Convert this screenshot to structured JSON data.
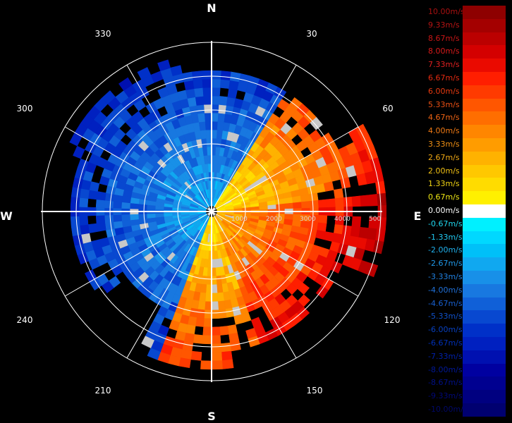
{
  "compass": {
    "north": "N",
    "east": "E",
    "south": "S",
    "west": "W"
  },
  "angle_labels": [
    "30",
    "60",
    "120",
    "150",
    "210",
    "240",
    "300",
    "330"
  ],
  "range_labels": [
    "1000",
    "2000",
    "3000",
    "4000",
    "500"
  ],
  "legend": [
    {
      "label": "10.00m/s",
      "color": "#8e0000",
      "text_color": "#a81010"
    },
    {
      "label": "9.33m/s",
      "color": "#a40000",
      "text_color": "#b81414"
    },
    {
      "label": "8.67m/s",
      "color": "#bb0000",
      "text_color": "#c81616"
    },
    {
      "label": "8.00m/s",
      "color": "#d40000",
      "text_color": "#d81a1a"
    },
    {
      "label": "7.33m/s",
      "color": "#ea0a00",
      "text_color": "#e02020"
    },
    {
      "label": "6.67m/s",
      "color": "#ff1e00",
      "text_color": "#e42a10"
    },
    {
      "label": "6.00m/s",
      "color": "#ff3a00",
      "text_color": "#e83a10"
    },
    {
      "label": "5.33m/s",
      "color": "#ff5600",
      "text_color": "#ec5014"
    },
    {
      "label": "4.67m/s",
      "color": "#ff6e00",
      "text_color": "#f06414"
    },
    {
      "label": "4.00m/s",
      "color": "#ff8600",
      "text_color": "#f07a14"
    },
    {
      "label": "3.33m/s",
      "color": "#ff9c00",
      "text_color": "#f09014"
    },
    {
      "label": "2.67m/s",
      "color": "#ffb200",
      "text_color": "#f0a814"
    },
    {
      "label": "2.00m/s",
      "color": "#ffc800",
      "text_color": "#f0c014"
    },
    {
      "label": "1.33m/s",
      "color": "#ffdc00",
      "text_color": "#f0d414"
    },
    {
      "label": "0.67m/s",
      "color": "#fff000",
      "text_color": "#f0e814"
    },
    {
      "label": "0.00m/s",
      "color": "#ffffff",
      "text_color": "#ffffff"
    },
    {
      "label": "-0.67m/s",
      "color": "#00f0ff",
      "text_color": "#20d8f0"
    },
    {
      "label": "-1.33m/s",
      "color": "#00d8ff",
      "text_color": "#20c8f0"
    },
    {
      "label": "-2.00m/s",
      "color": "#00c0f8",
      "text_color": "#20b0ec"
    },
    {
      "label": "-2.67m/s",
      "color": "#10a8f0",
      "text_color": "#2098e8"
    },
    {
      "label": "-3.33m/s",
      "color": "#1890e8",
      "text_color": "#2080e0"
    },
    {
      "label": "-4.00m/s",
      "color": "#1878e0",
      "text_color": "#2070d8"
    },
    {
      "label": "-4.67m/s",
      "color": "#1060d8",
      "text_color": "#1860d0"
    },
    {
      "label": "-5.33m/s",
      "color": "#0848d0",
      "text_color": "#1050c8"
    },
    {
      "label": "-6.00m/s",
      "color": "#0030c8",
      "text_color": "#0840c0"
    },
    {
      "label": "-6.67m/s",
      "color": "#0020c0",
      "text_color": "#0030b8"
    },
    {
      "label": "-7.33m/s",
      "color": "#0010b0",
      "text_color": "#0020a8"
    },
    {
      "label": "-8.00m/s",
      "color": "#0000a0",
      "text_color": "#001898"
    },
    {
      "label": "-8.67m/s",
      "color": "#000090",
      "text_color": "#001088"
    },
    {
      "label": "-9.33m/s",
      "color": "#000080",
      "text_color": "#000878"
    },
    {
      "label": "-10.00m/s",
      "color": "#000070",
      "text_color": "#000868"
    }
  ]
}
